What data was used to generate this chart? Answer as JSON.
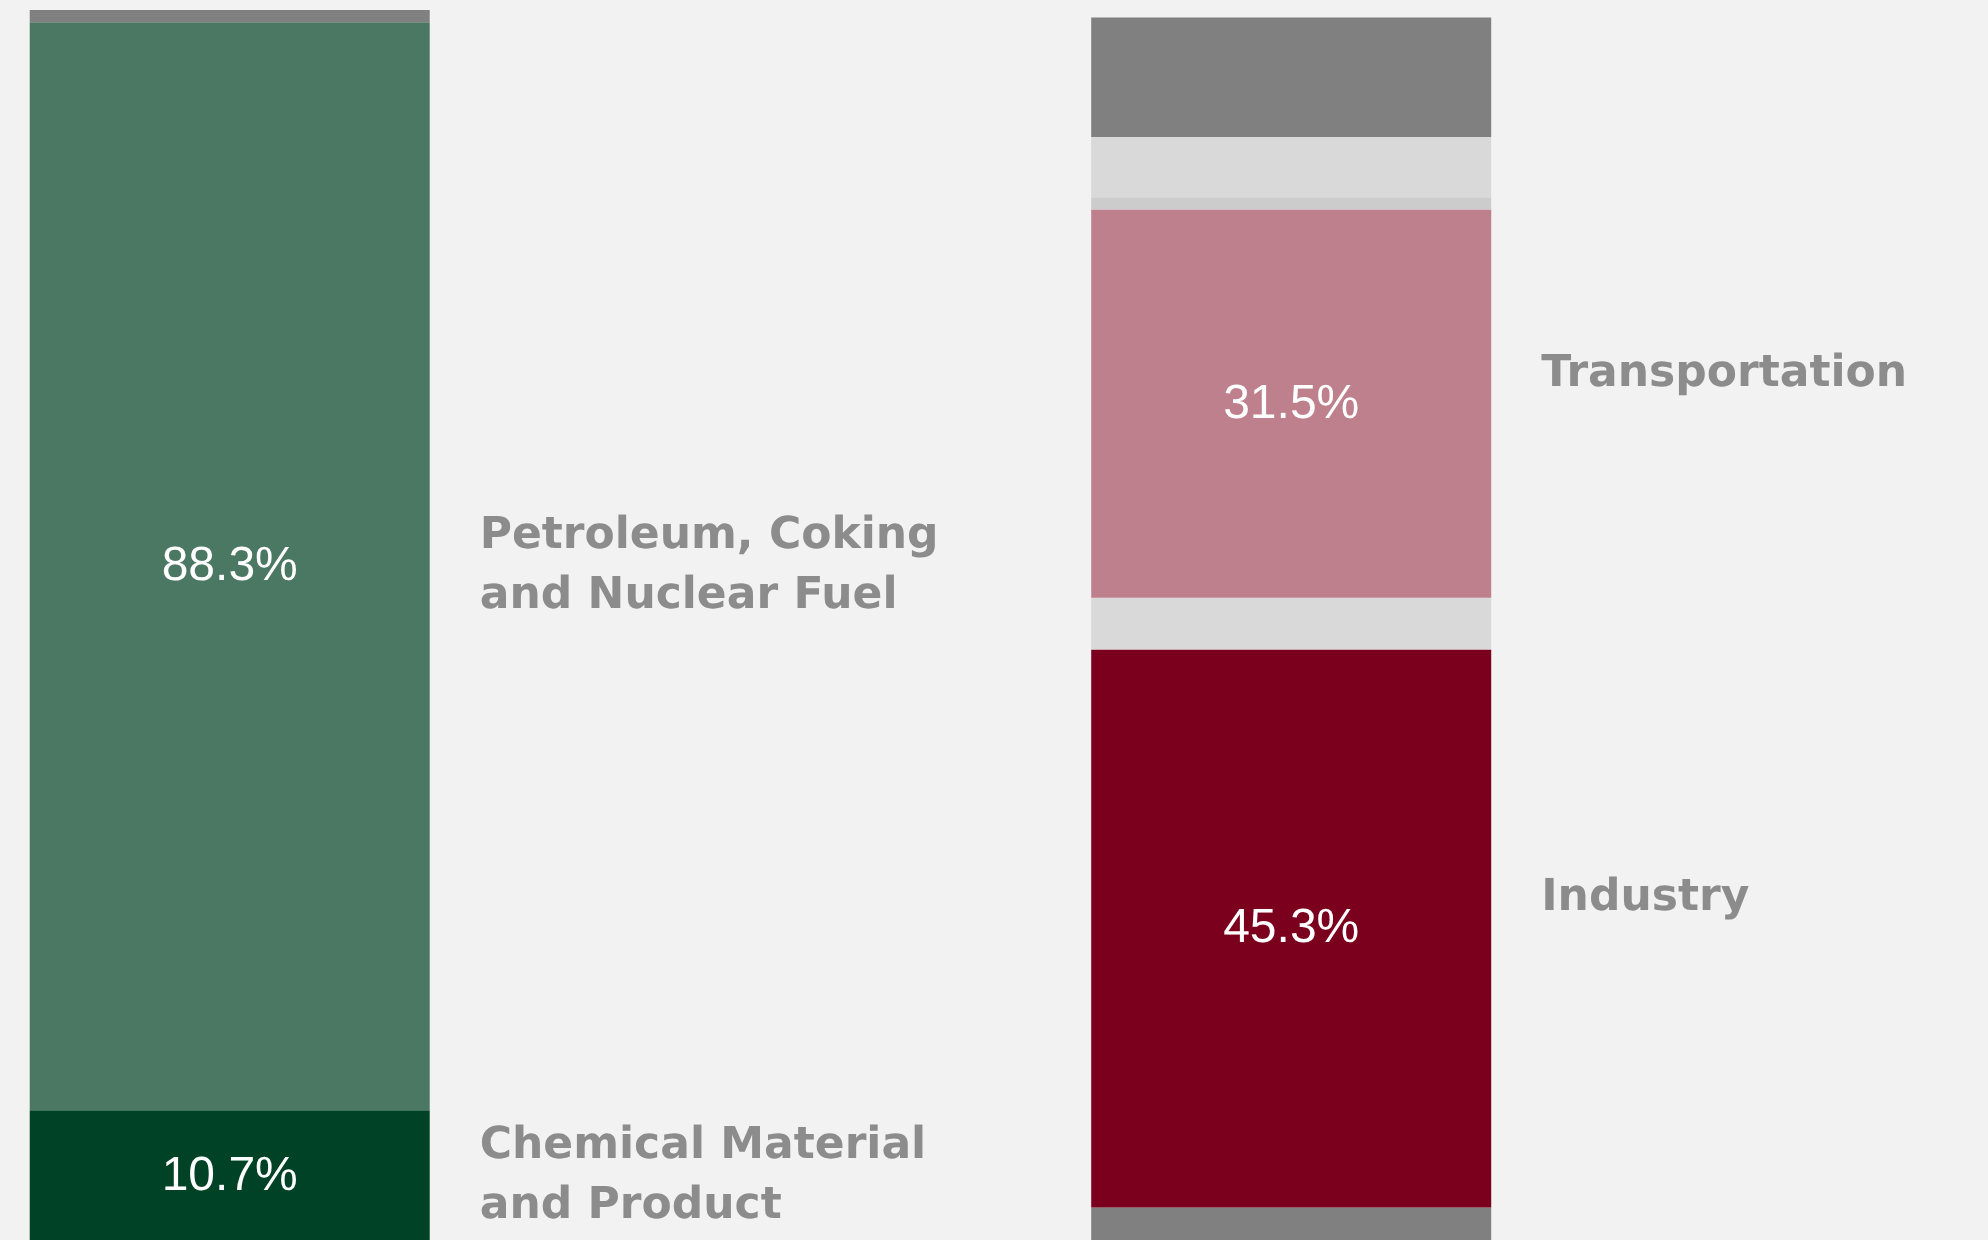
{
  "chart_data": {
    "type": "bar",
    "stacked": true,
    "categories": [
      null,
      null
    ],
    "ylim": [
      0,
      100
    ],
    "tick_labels": false,
    "series": [
      {
        "name": "Chemical Material and Product",
        "color": "#004225",
        "values": [
          10.7,
          null
        ],
        "value_labels": [
          "10.7%",
          null
        ]
      },
      {
        "name": "Petroleum, Coking and Nuclear Fuel",
        "color": "#4a7862",
        "values": [
          88.3,
          null
        ],
        "value_labels": [
          "88.3%",
          null
        ]
      },
      {
        "color": "#808080",
        "values": [
          1.0,
          null
        ]
      },
      {
        "color": "#808080",
        "values": [
          null,
          2.8
        ]
      },
      {
        "name": "Industry",
        "color": "#7b001e",
        "values": [
          null,
          45.3
        ],
        "value_labels": [
          null,
          "45.3%"
        ]
      },
      {
        "color": "#d9d9d9",
        "values": [
          null,
          4.2
        ]
      },
      {
        "name": "Transportation",
        "color": "#be808d",
        "values": [
          null,
          31.5
        ],
        "value_labels": [
          null,
          "31.5%"
        ]
      },
      {
        "color": "#cccccc",
        "values": [
          null,
          1.0
        ]
      },
      {
        "color": "#d9d9d9",
        "values": [
          null,
          4.9
        ]
      },
      {
        "color": "#808080",
        "values": [
          null,
          9.7
        ]
      }
    ]
  }
}
